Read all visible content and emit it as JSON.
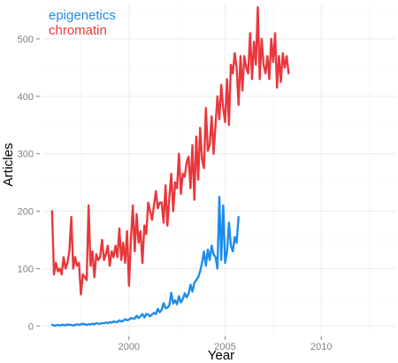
{
  "chart_data": {
    "type": "line",
    "title": "",
    "xlabel": "Year",
    "ylabel": "Articles",
    "xlim": [
      1995.5,
      2013.9
    ],
    "ylim": [
      -15,
      560
    ],
    "x_ticks": [
      2000,
      2005,
      2010
    ],
    "y_ticks": [
      0,
      100,
      200,
      300,
      400,
      500
    ],
    "grid": true,
    "legend_position": "top-left",
    "series": [
      {
        "name": "epigenetics",
        "color": "#1f8ceb",
        "start_year": 1996,
        "step": 0.1,
        "values": [
          2,
          1,
          1,
          2,
          1,
          2,
          2,
          1,
          3,
          2,
          2,
          1,
          2,
          3,
          2,
          3,
          4,
          3,
          2,
          3,
          3,
          4,
          3,
          5,
          4,
          4,
          5,
          5,
          6,
          5,
          7,
          6,
          8,
          7,
          7,
          10,
          8,
          9,
          12,
          10,
          11,
          14,
          13,
          13,
          18,
          14,
          17,
          21,
          15,
          21,
          20,
          17,
          20,
          23,
          21,
          30,
          24,
          28,
          40,
          31,
          32,
          36,
          58,
          39,
          45,
          38,
          52,
          41,
          47,
          57,
          50,
          56,
          72,
          60,
          75,
          80,
          85,
          95,
          110,
          130,
          105,
          133,
          115,
          140,
          125,
          120,
          100,
          225,
          115,
          210,
          110,
          130,
          180,
          140,
          130,
          155,
          145,
          190
        ]
      },
      {
        "name": "chromatin",
        "color": "#e8383d",
        "start_year": 1996,
        "step": 0.1,
        "values": [
          200,
          90,
          110,
          95,
          100,
          90,
          120,
          100,
          110,
          130,
          190,
          100,
          120,
          105,
          110,
          55,
          90,
          85,
          80,
          210,
          105,
          130,
          85,
          125,
          115,
          120,
          150,
          115,
          125,
          140,
          105,
          130,
          120,
          140,
          120,
          170,
          115,
          145,
          110,
          165,
          70,
          150,
          210,
          130,
          195,
          145,
          165,
          110,
          175,
          160,
          215,
          200,
          185,
          210,
          235,
          205,
          215,
          215,
          180,
          245,
          175,
          225,
          265,
          200,
          250,
          240,
          300,
          230,
          265,
          260,
          285,
          295,
          240,
          315,
          220,
          330,
          255,
          345,
          290,
          275,
          380,
          305,
          315,
          365,
          300,
          350,
          400,
          360,
          420,
          380,
          355,
          430,
          350,
          455,
          440,
          475,
          450,
          385,
          470,
          410,
          470,
          450,
          440,
          510,
          430,
          495,
          455,
          555,
          430,
          500,
          455,
          440,
          470,
          430,
          500,
          460,
          510,
          415,
          470,
          425,
          475,
          450,
          470,
          440
        ]
      }
    ]
  }
}
